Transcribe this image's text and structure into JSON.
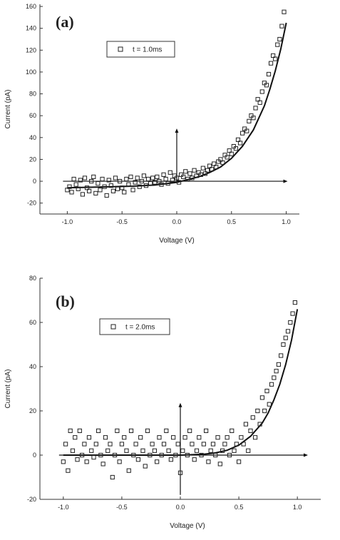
{
  "chart_data": [
    {
      "type": "scatter",
      "panel_label": "(a)",
      "xlabel": "Voltage (V)",
      "ylabel": "Current (pA)",
      "xlim": [
        -1.25,
        1.12
      ],
      "ylim": [
        -30,
        162
      ],
      "xticks": [
        -1.0,
        -0.5,
        0.0,
        0.5,
        1.0
      ],
      "xtick_labels": [
        "-1.0",
        "-0.5",
        "0.0",
        "0.5",
        "1.0"
      ],
      "yticks": [
        -20,
        0,
        20,
        40,
        60,
        80,
        100,
        120,
        140,
        160
      ],
      "ytick_labels": [
        "-20",
        "0",
        "20",
        "40",
        "60",
        "80",
        "100",
        "120",
        "140",
        "160"
      ],
      "legend": {
        "label": "t = 1.0ms",
        "position": "top-center"
      },
      "grid": false,
      "series": [
        {
          "marker": "open-square",
          "x": [
            -1.0,
            -0.98,
            -0.96,
            -0.94,
            -0.92,
            -0.9,
            -0.88,
            -0.86,
            -0.84,
            -0.82,
            -0.8,
            -0.78,
            -0.76,
            -0.74,
            -0.72,
            -0.7,
            -0.68,
            -0.66,
            -0.64,
            -0.62,
            -0.6,
            -0.58,
            -0.56,
            -0.54,
            -0.52,
            -0.5,
            -0.48,
            -0.46,
            -0.44,
            -0.42,
            -0.4,
            -0.38,
            -0.36,
            -0.34,
            -0.32,
            -0.3,
            -0.28,
            -0.26,
            -0.24,
            -0.22,
            -0.2,
            -0.18,
            -0.16,
            -0.14,
            -0.12,
            -0.1,
            -0.08,
            -0.06,
            -0.04,
            -0.02,
            0.0,
            0.02,
            0.04,
            0.06,
            0.08,
            0.1,
            0.12,
            0.14,
            0.16,
            0.18,
            0.2,
            0.22,
            0.24,
            0.26,
            0.28,
            0.3,
            0.32,
            0.34,
            0.36,
            0.38,
            0.4,
            0.42,
            0.44,
            0.46,
            0.48,
            0.5,
            0.52,
            0.54,
            0.56,
            0.58,
            0.6,
            0.62,
            0.64,
            0.66,
            0.68,
            0.7,
            0.72,
            0.74,
            0.76,
            0.78,
            0.8,
            0.82,
            0.84,
            0.86,
            0.88,
            0.9,
            0.92,
            0.94,
            0.96,
            0.98
          ],
          "y": [
            -8,
            -5,
            -10,
            2,
            -3,
            -7,
            1,
            -12,
            3,
            -6,
            -9,
            0,
            4,
            -11,
            -2,
            -8,
            2,
            -5,
            -13,
            1,
            -4,
            -9,
            3,
            -7,
            0,
            -6,
            -10,
            2,
            -3,
            4,
            -8,
            -1,
            3,
            -5,
            0,
            5,
            -4,
            2,
            -2,
            3,
            -1,
            4,
            0,
            -3,
            6,
            2,
            -2,
            8,
            1,
            5,
            3,
            -1,
            6,
            4,
            9,
            2,
            7,
            3,
            10,
            5,
            8,
            6,
            12,
            7,
            10,
            14,
            11,
            16,
            13,
            18,
            20,
            17,
            24,
            22,
            28,
            25,
            32,
            30,
            38,
            35,
            44,
            48,
            46,
            55,
            60,
            58,
            67,
            75,
            72,
            82,
            90,
            88,
            98,
            108,
            115,
            112,
            125,
            130,
            142,
            155
          ],
          "fit_line": {
            "x": [
              -1.0,
              -0.8,
              -0.6,
              -0.4,
              -0.2,
              0.0,
              0.1,
              0.2,
              0.3,
              0.4,
              0.5,
              0.6,
              0.7,
              0.8,
              0.85,
              0.9,
              0.95,
              1.0
            ],
            "y": [
              -6,
              -5.5,
              -5,
              -4.5,
              -3.5,
              -1,
              1.5,
              4,
              8,
              13,
              21,
              32,
              47,
              69,
              84,
              101,
              121,
              145
            ]
          }
        }
      ]
    },
    {
      "type": "scatter",
      "panel_label": "(b)",
      "xlabel": "Voltage (V)",
      "ylabel": "Current (pA)",
      "xlim": [
        -1.2,
        1.2
      ],
      "ylim": [
        -20,
        80
      ],
      "xticks": [
        -1.0,
        -0.5,
        0.0,
        0.5,
        1.0
      ],
      "xtick_labels": [
        "-1.0",
        "-0.5",
        "0.0",
        "0.5",
        "1.0"
      ],
      "yticks": [
        -20,
        0,
        20,
        40,
        60,
        80
      ],
      "ytick_labels": [
        "-20",
        "0",
        "20",
        "40",
        "60",
        "80"
      ],
      "legend": {
        "label": "t = 2.0ms",
        "position": "top-center"
      },
      "grid": false,
      "series": [
        {
          "marker": "open-square",
          "x": [
            -1.0,
            -0.98,
            -0.96,
            -0.94,
            -0.92,
            -0.9,
            -0.88,
            -0.86,
            -0.84,
            -0.82,
            -0.8,
            -0.78,
            -0.76,
            -0.74,
            -0.72,
            -0.7,
            -0.68,
            -0.66,
            -0.64,
            -0.62,
            -0.6,
            -0.58,
            -0.56,
            -0.54,
            -0.52,
            -0.5,
            -0.48,
            -0.46,
            -0.44,
            -0.42,
            -0.4,
            -0.38,
            -0.36,
            -0.34,
            -0.32,
            -0.3,
            -0.28,
            -0.26,
            -0.24,
            -0.22,
            -0.2,
            -0.18,
            -0.16,
            -0.14,
            -0.12,
            -0.1,
            -0.08,
            -0.06,
            -0.04,
            -0.02,
            0.0,
            0.02,
            0.04,
            0.06,
            0.08,
            0.1,
            0.12,
            0.14,
            0.16,
            0.18,
            0.2,
            0.22,
            0.24,
            0.26,
            0.28,
            0.3,
            0.32,
            0.34,
            0.36,
            0.38,
            0.4,
            0.42,
            0.44,
            0.46,
            0.48,
            0.5,
            0.52,
            0.54,
            0.56,
            0.58,
            0.6,
            0.62,
            0.64,
            0.66,
            0.68,
            0.7,
            0.72,
            0.74,
            0.76,
            0.78,
            0.8,
            0.82,
            0.84,
            0.86,
            0.88,
            0.9,
            0.92,
            0.94,
            0.96,
            0.98
          ],
          "y": [
            -3,
            5,
            -7,
            11,
            2,
            8,
            -2,
            11,
            0,
            5,
            -3,
            8,
            2,
            -1,
            5,
            11,
            0,
            -4,
            8,
            2,
            5,
            -10,
            0,
            11,
            -3,
            5,
            8,
            2,
            -7,
            11,
            0,
            5,
            -2,
            8,
            2,
            -5,
            11,
            0,
            5,
            2,
            -3,
            8,
            0,
            5,
            11,
            2,
            -2,
            8,
            0,
            5,
            -8,
            2,
            8,
            0,
            11,
            5,
            -2,
            2,
            8,
            0,
            5,
            11,
            -3,
            2,
            5,
            0,
            8,
            -4,
            2,
            5,
            8,
            0,
            11,
            2,
            5,
            -3,
            8,
            5,
            14,
            2,
            11,
            17,
            8,
            20,
            14,
            26,
            20,
            29,
            23,
            32,
            35,
            38,
            41,
            45,
            50,
            53,
            56,
            60,
            64,
            69
          ],
          "fit_line": {
            "x": [
              -1.0,
              -0.8,
              -0.6,
              -0.4,
              -0.2,
              0.0,
              0.2,
              0.3,
              0.4,
              0.5,
              0.6,
              0.7,
              0.75,
              0.8,
              0.85,
              0.9,
              0.95,
              1.0
            ],
            "y": [
              0,
              0,
              0,
              0,
              0,
              0,
              0.4,
              1,
              2.2,
              4.5,
              8.5,
              14.5,
              19,
              25,
              32,
              41,
              52,
              66
            ]
          }
        }
      ]
    }
  ]
}
